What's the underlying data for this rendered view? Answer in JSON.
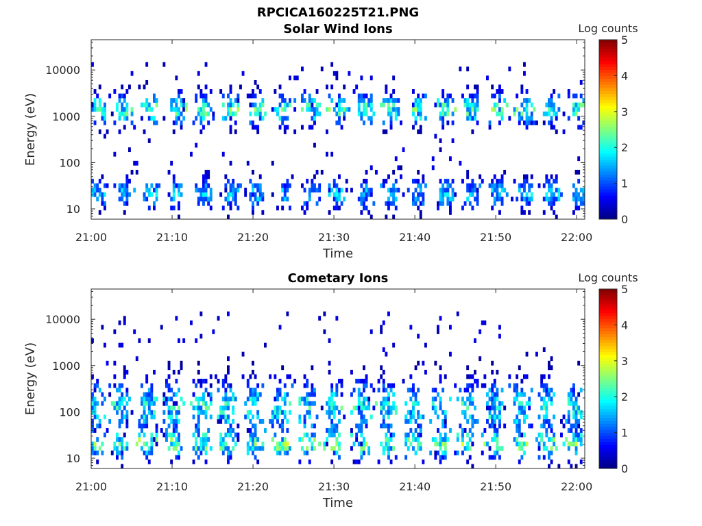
{
  "figure_title": "RPCICA160225T21.PNG",
  "chart_data": [
    {
      "type": "heatmap",
      "title": "Solar Wind Ions",
      "xlabel": "Time",
      "ylabel": "Energy (eV)",
      "x_ticks": [
        "21:00",
        "21:10",
        "21:20",
        "21:30",
        "21:40",
        "21:50",
        "22:00"
      ],
      "y_ticks": [
        10,
        100,
        1000,
        10000
      ],
      "y_scale": "log",
      "ylim": [
        6,
        45000
      ],
      "xlim_minutes": [
        0,
        61
      ],
      "colorbar": {
        "label": "Log counts",
        "min": 0,
        "max": 5,
        "ticks": [
          0,
          1,
          2,
          3,
          4,
          5
        ]
      },
      "colormap": "jet",
      "features": [
        {
          "name": "solar-wind-beam",
          "energy_eV": [
            1000,
            2000
          ],
          "peak_log_counts": 2.8
        },
        {
          "name": "low-energy-ions",
          "energy_eV": [
            15,
            30
          ],
          "peak_log_counts": 2.0
        }
      ]
    },
    {
      "type": "heatmap",
      "title": "Cometary Ions",
      "xlabel": "Time",
      "ylabel": "Energy (eV)",
      "x_ticks": [
        "21:00",
        "21:10",
        "21:20",
        "21:30",
        "21:40",
        "21:50",
        "22:00"
      ],
      "y_ticks": [
        10,
        100,
        1000,
        10000
      ],
      "y_scale": "log",
      "ylim": [
        6,
        45000
      ],
      "xlim_minutes": [
        0,
        61
      ],
      "colorbar": {
        "label": "Log counts",
        "min": 0,
        "max": 5,
        "ticks": [
          0,
          1,
          2,
          3,
          4,
          5
        ]
      },
      "colormap": "jet",
      "features": [
        {
          "name": "cometary-ions",
          "energy_eV": [
            50,
            300
          ],
          "peak_log_counts": 2.5
        },
        {
          "name": "low-energy-cometary",
          "energy_eV": [
            15,
            30
          ],
          "peak_log_counts": 3.0
        }
      ]
    }
  ]
}
